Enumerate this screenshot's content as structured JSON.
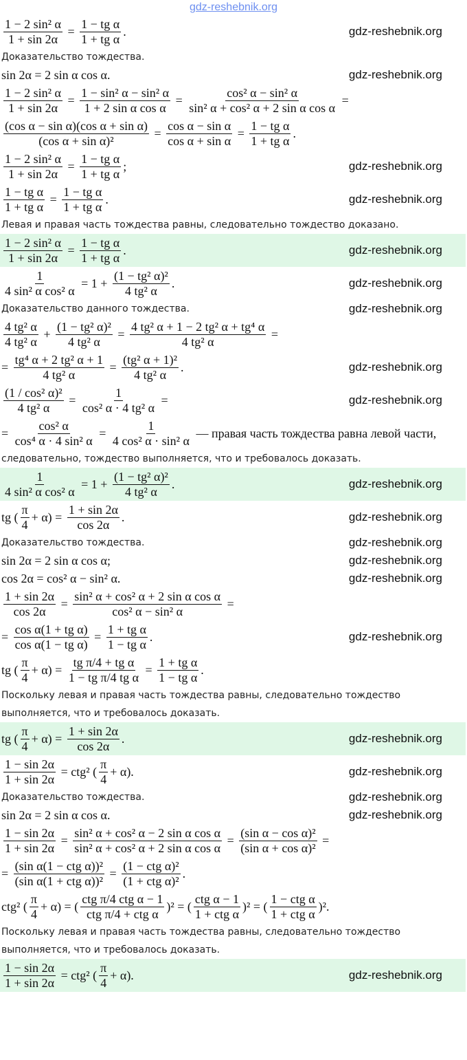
{
  "watermark": "gdz-reshebnik.org",
  "colors": {
    "answer_highlight": "#dff7e6",
    "top_watermark": "#6d8ff0"
  },
  "blocks": [
    {
      "lines": [
        {
          "type": "formula",
          "parts": [
            {
              "n": "1 − 2 sin² α",
              "d": "1 + sin 2α"
            },
            " = ",
            {
              "n": "1 − tg α",
              "d": "1 + tg α"
            },
            "."
          ]
        },
        {
          "type": "text",
          "text": "Доказательство тождества."
        },
        {
          "type": "simple",
          "parts": [
            "sin 2α = 2 sin α cos α."
          ]
        },
        {
          "type": "formula",
          "parts": [
            {
              "n": "1 − 2 sin² α",
              "d": "1 + sin 2α"
            },
            " = ",
            {
              "n": "1 − sin² α − sin² α",
              "d": "1 + 2 sin α cos α"
            },
            " = ",
            {
              "n": "cos² α − sin² α",
              "d": "sin² α + cos² α + 2 sin α cos α"
            },
            " ="
          ]
        },
        {
          "type": "formula",
          "parts": [
            {
              "n": "(cos α − sin α)(cos α + sin α)",
              "d": "(cos α + sin α)²"
            },
            " = ",
            {
              "n": "cos α − sin α",
              "d": "cos α + sin α"
            },
            " = ",
            {
              "n": "1 − tg α",
              "d": "1 + tg α"
            },
            "."
          ]
        },
        {
          "type": "formula",
          "parts": [
            {
              "n": "1 − 2 sin² α",
              "d": "1 + sin 2α"
            },
            " = ",
            {
              "n": "1 − tg α",
              "d": "1 + tg α"
            },
            ";"
          ]
        },
        {
          "type": "formula",
          "parts": [
            {
              "n": "1 − tg α",
              "d": "1 + tg α"
            },
            " = ",
            {
              "n": "1 − tg α",
              "d": "1 + tg α"
            },
            "."
          ]
        },
        {
          "type": "text",
          "text": "Левая и правая часть тождества равны, следовательно тождество доказано."
        },
        {
          "type": "answer",
          "parts": [
            {
              "n": "1 − 2 sin² α",
              "d": "1 + sin 2α"
            },
            " = ",
            {
              "n": "1 − tg α",
              "d": "1 + tg α"
            },
            "."
          ]
        }
      ]
    },
    {
      "lines": [
        {
          "type": "formula",
          "parts": [
            {
              "n": "1",
              "d": "4 sin² α cos² α"
            },
            " = 1 + ",
            {
              "n": "(1 − tg² α)²",
              "d": "4 tg² α"
            },
            "."
          ]
        },
        {
          "type": "text",
          "text": "Доказательство данного тождества."
        },
        {
          "type": "formula",
          "parts": [
            {
              "n": "4 tg² α",
              "d": "4 tg² α"
            },
            " + ",
            {
              "n": "(1 − tg² α)²",
              "d": "4 tg² α"
            },
            " = ",
            {
              "n": "4 tg² α + 1 − 2 tg² α + tg⁴ α",
              "d": "4 tg² α"
            },
            " ="
          ]
        },
        {
          "type": "formula",
          "parts": [
            "= ",
            {
              "n": "tg⁴ α + 2 tg² α + 1",
              "d": "4 tg² α"
            },
            " = ",
            {
              "n": "(tg² α + 1)²",
              "d": "4 tg² α"
            },
            "."
          ]
        },
        {
          "type": "formula",
          "parts": [
            {
              "n": "(1 / cos² α)²",
              "d": "4 tg² α"
            },
            " = ",
            {
              "n": "1",
              "d": "cos² α · 4 tg² α"
            },
            " ="
          ]
        },
        {
          "type": "formula",
          "parts": [
            "= ",
            {
              "n": "cos² α",
              "d": "cos⁴ α · 4 sin² α"
            },
            " = ",
            {
              "n": "1",
              "d": "4 cos² α · sin² α"
            },
            " — правая часть тождества равна левой части,"
          ]
        },
        {
          "type": "text",
          "text": "следовательно, тождество выполняется, что и требовалось доказать."
        },
        {
          "type": "answer",
          "parts": [
            {
              "n": "1",
              "d": "4 sin² α cos² α"
            },
            " = 1 + ",
            {
              "n": "(1 − tg² α)²",
              "d": "4 tg² α"
            },
            "."
          ]
        }
      ]
    },
    {
      "lines": [
        {
          "type": "formula",
          "parts": [
            "tg (",
            {
              "n": "π",
              "d": "4"
            },
            "+ α) = ",
            {
              "n": "1 + sin 2α",
              "d": "cos 2α"
            },
            "."
          ]
        },
        {
          "type": "text",
          "text": "Доказательство тождества."
        },
        {
          "type": "simple",
          "parts": [
            "sin 2α = 2 sin α cos α;"
          ]
        },
        {
          "type": "simple",
          "parts": [
            "cos 2α = cos² α − sin² α."
          ]
        },
        {
          "type": "formula",
          "parts": [
            {
              "n": "1 + sin 2α",
              "d": "cos 2α"
            },
            " = ",
            {
              "n": "sin² α + cos² α + 2 sin α cos α",
              "d": "cos² α − sin² α"
            },
            " ="
          ]
        },
        {
          "type": "formula",
          "parts": [
            "= ",
            {
              "n": "cos α(1 + tg α)",
              "d": "cos α(1 − tg α)"
            },
            " = ",
            {
              "n": "1 + tg α",
              "d": "1 − tg α"
            },
            "."
          ]
        },
        {
          "type": "formula",
          "parts": [
            "tg (",
            {
              "n": "π",
              "d": "4"
            },
            "+ α) = ",
            {
              "n": "tg π/4 + tg α",
              "d": "1 − tg π/4 tg α"
            },
            " = ",
            {
              "n": "1 + tg α",
              "d": "1 − tg α"
            },
            "."
          ]
        },
        {
          "type": "text",
          "text": "Поскольку левая и правая часть тождества равны, следовательно тождество"
        },
        {
          "type": "text",
          "text": "выполняется, что и требовалось доказать."
        },
        {
          "type": "answer",
          "parts": [
            "tg (",
            {
              "n": "π",
              "d": "4"
            },
            "+ α) = ",
            {
              "n": "1 + sin 2α",
              "d": "cos 2α"
            },
            "."
          ]
        }
      ]
    },
    {
      "lines": [
        {
          "type": "formula",
          "parts": [
            {
              "n": "1 − sin 2α",
              "d": "1 + sin 2α"
            },
            " = ctg² (",
            {
              "n": "π",
              "d": "4"
            },
            "+ α)."
          ]
        },
        {
          "type": "text",
          "text": "Доказательство тождества."
        },
        {
          "type": "simple",
          "parts": [
            "sin 2α = 2 sin α cos α."
          ]
        },
        {
          "type": "formula",
          "parts": [
            {
              "n": "1 − sin 2α",
              "d": "1 + sin 2α"
            },
            " = ",
            {
              "n": "sin² α + cos² α − 2 sin α cos α",
              "d": "sin² α + cos² α + 2 sin α cos α"
            },
            " = ",
            {
              "n": "(sin α − cos α)²",
              "d": "(sin α + cos α)²"
            },
            " ="
          ]
        },
        {
          "type": "formula",
          "parts": [
            "= ",
            {
              "n": "(sin α(1 − ctg α))²",
              "d": "(sin α(1 + ctg α))²"
            },
            " = ",
            {
              "n": "(1 − ctg α)²",
              "d": "(1 + ctg α)²"
            },
            "."
          ]
        },
        {
          "type": "formula",
          "parts": [
            "ctg² (",
            {
              "n": "π",
              "d": "4"
            },
            "+ α) = (",
            {
              "n": "ctg π/4 ctg α − 1",
              "d": "ctg π/4 + ctg α"
            },
            ")² = (",
            {
              "n": "ctg α − 1",
              "d": "1 + ctg α"
            },
            ")² = (",
            {
              "n": "1 − ctg α",
              "d": "1 + ctg α"
            },
            ")²."
          ]
        },
        {
          "type": "text",
          "text": "Поскольку левая и правая часть тождества равны, следовательно тождество"
        },
        {
          "type": "text",
          "text": "выполняется, что и требовалось доказать."
        },
        {
          "type": "answer",
          "parts": [
            {
              "n": "1 − sin 2α",
              "d": "1 + sin 2α"
            },
            " = ctg² (",
            {
              "n": "π",
              "d": "4"
            },
            "+ α)."
          ]
        }
      ]
    }
  ]
}
